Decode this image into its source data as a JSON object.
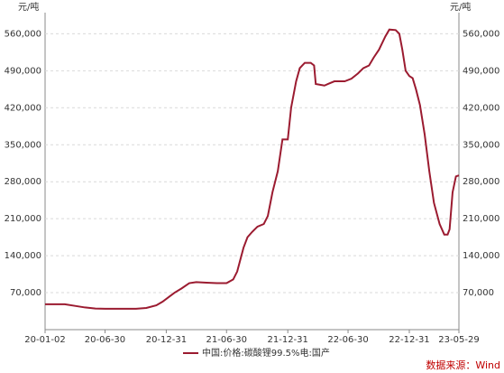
{
  "chart_data": {
    "type": "line",
    "unit_label": "元/吨",
    "source": "数据来源：Wind",
    "x": [
      "2020-01-02",
      "2020-03-01",
      "2020-04-01",
      "2020-05-01",
      "2020-06-01",
      "2020-07-01",
      "2020-10-01",
      "2020-11-01",
      "2020-12-01",
      "2020-12-20",
      "2021-01-10",
      "2021-01-25",
      "2021-02-15",
      "2021-03-10",
      "2021-03-31",
      "2021-05-01",
      "2021-06-01",
      "2021-06-30",
      "2021-07-20",
      "2021-08-01",
      "2021-08-20",
      "2021-09-01",
      "2021-09-15",
      "2021-10-01",
      "2021-10-20",
      "2021-11-01",
      "2021-11-15",
      "2021-12-01",
      "2021-12-15",
      "2021-12-31",
      "2022-01-10",
      "2022-01-25",
      "2022-02-05",
      "2022-02-20",
      "2022-03-10",
      "2022-03-20",
      "2022-03-25",
      "2022-04-20",
      "2022-05-01",
      "2022-05-20",
      "2022-06-20",
      "2022-07-10",
      "2022-07-30",
      "2022-08-15",
      "2022-09-01",
      "2022-09-15",
      "2022-10-01",
      "2022-10-20",
      "2022-11-01",
      "2022-11-20",
      "2022-12-01",
      "2022-12-10",
      "2022-12-20",
      "2022-12-31",
      "2023-01-10",
      "2023-01-20",
      "2023-02-01",
      "2023-02-15",
      "2023-03-01",
      "2023-03-15",
      "2023-04-01",
      "2023-04-15",
      "2023-04-25",
      "2023-05-01",
      "2023-05-10",
      "2023-05-20",
      "2023-05-29"
    ],
    "series": [
      {
        "name": "中国:价格:碳酸锂99.5%电:国产",
        "color": "#9b1b30",
        "values": [
          48000,
          48000,
          45000,
          42000,
          40000,
          39500,
          39500,
          41000,
          46000,
          53000,
          63000,
          70000,
          78000,
          88000,
          90000,
          89000,
          88000,
          88000,
          95000,
          110000,
          155000,
          175000,
          185000,
          195000,
          200000,
          215000,
          260000,
          300000,
          360000,
          360000,
          420000,
          470000,
          495000,
          505000,
          505000,
          500000,
          465000,
          462000,
          465000,
          470000,
          470000,
          475000,
          485000,
          495000,
          500000,
          515000,
          530000,
          555000,
          568000,
          567000,
          560000,
          530000,
          490000,
          480000,
          476000,
          455000,
          425000,
          370000,
          300000,
          240000,
          200000,
          180000,
          180000,
          190000,
          260000,
          290000,
          292000
        ]
      }
    ],
    "xlim": [
      "2020-01-02",
      "2023-05-29"
    ],
    "xticks": [
      {
        "value": "2020-01-02",
        "label": "20-01-02"
      },
      {
        "value": "2020-06-30",
        "label": "20-06-30"
      },
      {
        "value": "2020-12-31",
        "label": "20-12-31"
      },
      {
        "value": "2021-06-30",
        "label": "21-06-30"
      },
      {
        "value": "2021-12-31",
        "label": "21-12-31"
      },
      {
        "value": "2022-06-30",
        "label": "22-06-30"
      },
      {
        "value": "2022-12-31",
        "label": "22-12-31"
      },
      {
        "value": "2023-05-29",
        "label": "23-05-29"
      }
    ],
    "ylim": [
      0,
      600000
    ],
    "yticks": [
      {
        "value": 70000,
        "label": "70,000"
      },
      {
        "value": 140000,
        "label": "140,000"
      },
      {
        "value": 210000,
        "label": "210,000"
      },
      {
        "value": 280000,
        "label": "280,000"
      },
      {
        "value": 350000,
        "label": "350,000"
      },
      {
        "value": 420000,
        "label": "420,000"
      },
      {
        "value": 490000,
        "label": "490,000"
      },
      {
        "value": 560000,
        "label": "560,000"
      }
    ],
    "grid": true
  }
}
